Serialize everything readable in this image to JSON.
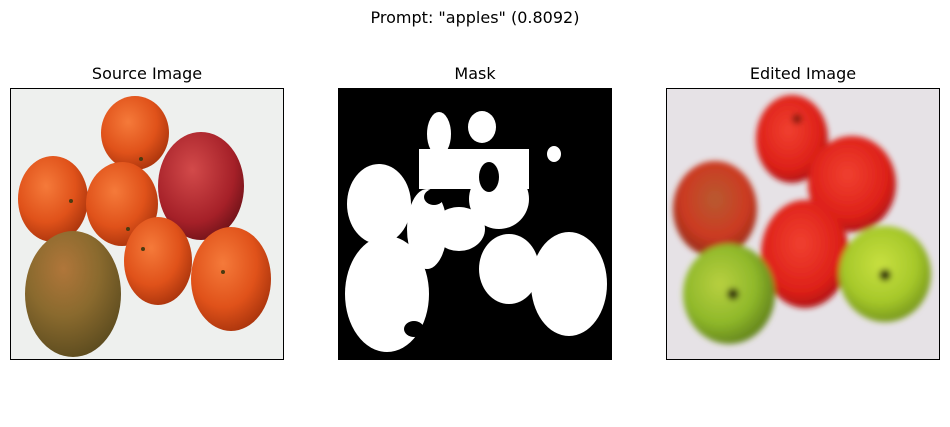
{
  "figure": {
    "title": "Prompt: \"apples\" (0.8092)"
  },
  "panels": [
    {
      "title": "Source Image"
    },
    {
      "title": "Mask"
    },
    {
      "title": "Edited Image"
    }
  ],
  "colors": {
    "orange": "#e0521a",
    "apple_red": "#b8232a",
    "mango_green": "#8a6a2e",
    "mask_white": "#ffffff",
    "mask_black": "#000000",
    "edited_red": "#e4231e",
    "edited_green": "#8fb82a"
  }
}
